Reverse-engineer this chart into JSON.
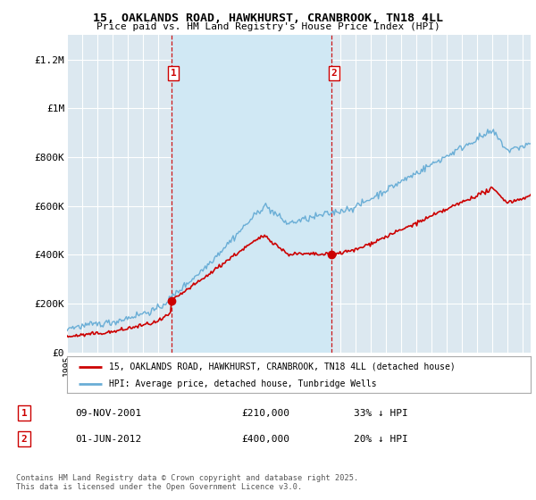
{
  "title_line1": "15, OAKLANDS ROAD, HAWKHURST, CRANBROOK, TN18 4LL",
  "title_line2": "Price paid vs. HM Land Registry's House Price Index (HPI)",
  "background_color": "#ffffff",
  "plot_bg_color": "#dce8f0",
  "plot_bg_between": "#e8f2f8",
  "grid_color": "#ffffff",
  "ylim": [
    0,
    1300000
  ],
  "yticks": [
    0,
    200000,
    400000,
    600000,
    800000,
    1000000,
    1200000
  ],
  "ytick_labels": [
    "£0",
    "£200K",
    "£400K",
    "£600K",
    "£800K",
    "£1M",
    "£1.2M"
  ],
  "sale1_date": 2001.86,
  "sale1_price": 210000,
  "sale2_date": 2012.42,
  "sale2_price": 400000,
  "hpi_color": "#6aaed6",
  "price_color": "#cc0000",
  "vline_color": "#cc0000",
  "shade_color": "#d0e8f4",
  "legend_label_price": "15, OAKLANDS ROAD, HAWKHURST, CRANBROOK, TN18 4LL (detached house)",
  "legend_label_hpi": "HPI: Average price, detached house, Tunbridge Wells",
  "table_entries": [
    {
      "num": "1",
      "date": "09-NOV-2001",
      "price": "£210,000",
      "hpi": "33% ↓ HPI"
    },
    {
      "num": "2",
      "date": "01-JUN-2012",
      "price": "£400,000",
      "hpi": "20% ↓ HPI"
    }
  ],
  "footer": "Contains HM Land Registry data © Crown copyright and database right 2025.\nThis data is licensed under the Open Government Licence v3.0.",
  "xmin": 1995,
  "xmax": 2025.5
}
